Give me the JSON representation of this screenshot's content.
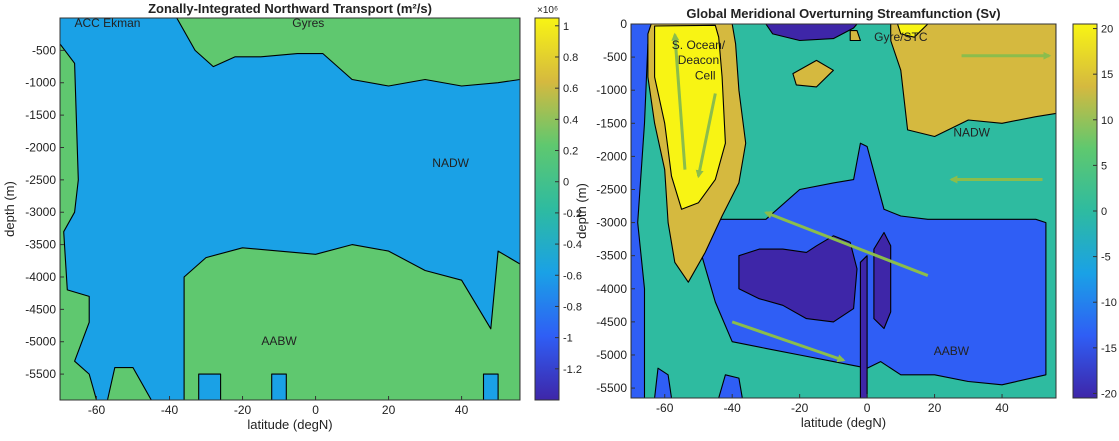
{
  "colors": {
    "levels": [
      "#3e26a8",
      "#2f5ef5",
      "#1aa1e6",
      "#2ebba0",
      "#5fc86f",
      "#d5b93f",
      "#f8f414"
    ]
  },
  "chart_data": [
    {
      "type": "heatmap",
      "title": "Zonally-Integrated Northward Transport (m²/s)",
      "xlabel": "latitude (degN)",
      "ylabel": "depth (m)",
      "xlim": [
        -70,
        56
      ],
      "ylim": [
        -5900,
        0
      ],
      "xticks": [
        "-60",
        "-40",
        "-20",
        "0",
        "20",
        "40"
      ],
      "xtick_values": [
        -60,
        -40,
        -20,
        0,
        20,
        40
      ],
      "yticks": [
        "-500",
        "-1000",
        "-1500",
        "-2000",
        "-2500",
        "-3000",
        "-3500",
        "-4000",
        "-4500",
        "-5000",
        "-5500"
      ],
      "ytick_values": [
        -500,
        -1000,
        -1500,
        -2000,
        -2500,
        -3000,
        -3500,
        -4000,
        -4500,
        -5000,
        -5500
      ],
      "colorbar": {
        "exponent": "×10⁶",
        "ticks": [
          "1",
          "0.8",
          "0.6",
          "0.4",
          "0.2",
          "0",
          "-0.2",
          "-0.4",
          "-0.6",
          "-0.8",
          "-1",
          "-1.2"
        ],
        "tick_values": [
          1,
          0.8,
          0.6,
          0.4,
          0.2,
          0,
          -0.2,
          -0.4,
          -0.6,
          -0.8,
          -1,
          -1.2
        ],
        "range": [
          -1.4,
          1.05
        ]
      },
      "annotations": [
        {
          "text": "ACC Ekman",
          "x": -57,
          "y": -90
        },
        {
          "text": "Gyres",
          "x": -2,
          "y": -90
        },
        {
          "text": "NADW",
          "x": 37,
          "y": -2250
        },
        {
          "text": "AABW",
          "x": -10,
          "y": -5000
        }
      ],
      "regions": [
        {
          "level": 4,
          "points": [
            [
              -70,
              0
            ],
            [
              -38,
              0
            ],
            [
              -33,
              -500
            ],
            [
              -28,
              -750
            ],
            [
              -22,
              -600
            ],
            [
              -15,
              -600
            ],
            [
              -5,
              -550
            ],
            [
              2,
              -550
            ],
            [
              10,
              -950
            ],
            [
              20,
              -1050
            ],
            [
              30,
              -950
            ],
            [
              40,
              -1050
            ],
            [
              50,
              -1000
            ],
            [
              56,
              -950
            ],
            [
              56,
              0
            ]
          ]
        },
        {
          "level": 4,
          "points": [
            [
              -70,
              -5900
            ],
            [
              -70,
              -400
            ],
            [
              -66,
              -700
            ],
            [
              -65,
              -2500
            ],
            [
              -66,
              -3000
            ],
            [
              -69,
              -3300
            ],
            [
              -68,
              -4200
            ],
            [
              -62,
              -4300
            ],
            [
              -62,
              -4700
            ],
            [
              -66,
              -5300
            ],
            [
              -62,
              -5500
            ],
            [
              -60,
              -5900
            ]
          ]
        },
        {
          "level": 4,
          "points": [
            [
              -36,
              -5900
            ],
            [
              -36,
              -4000
            ],
            [
              -30,
              -3700
            ],
            [
              -20,
              -3550
            ],
            [
              -10,
              -3600
            ],
            [
              0,
              -3650
            ],
            [
              10,
              -3500
            ],
            [
              20,
              -3600
            ],
            [
              30,
              -3900
            ],
            [
              40,
              -4050
            ],
            [
              48,
              -4800
            ],
            [
              50,
              -3600
            ],
            [
              56,
              -3800
            ],
            [
              56,
              -5900
            ],
            [
              50,
              -5900
            ],
            [
              50,
              -5500
            ],
            [
              46,
              -5500
            ],
            [
              46,
              -5900
            ],
            [
              -8,
              -5900
            ],
            [
              -8,
              -5500
            ],
            [
              -12,
              -5500
            ],
            [
              -12,
              -5900
            ],
            [
              -26,
              -5900
            ],
            [
              -26,
              -5500
            ],
            [
              -32,
              -5500
            ],
            [
              -32,
              -5900
            ]
          ]
        },
        {
          "level": 4,
          "points": [
            [
              -57,
              -5900
            ],
            [
              -55,
              -5400
            ],
            [
              -50,
              -5400
            ],
            [
              -45,
              -5900
            ]
          ]
        }
      ]
    },
    {
      "type": "heatmap",
      "title": "Global Meridional Overturning Streamfunction (Sv)",
      "xlabel": "latitude (degN)",
      "ylabel": "depth (m)",
      "xlim": [
        -70,
        56
      ],
      "ylim": [
        -5650,
        0
      ],
      "xticks": [
        "-60",
        "-40",
        "-20",
        "0",
        "20",
        "40"
      ],
      "xtick_values": [
        -60,
        -40,
        -20,
        0,
        20,
        40
      ],
      "yticks": [
        "0",
        "-500",
        "-1000",
        "-1500",
        "-2000",
        "-2500",
        "-3000",
        "-3500",
        "-4000",
        "-4500",
        "-5000",
        "-5500"
      ],
      "ytick_values": [
        0,
        -500,
        -1000,
        -1500,
        -2000,
        -2500,
        -3000,
        -3500,
        -4000,
        -4500,
        -5000,
        -5500
      ],
      "colorbar": {
        "exponent": "",
        "ticks": [
          "20",
          "15",
          "10",
          "5",
          "0",
          "-5",
          "-10",
          "-15",
          "-20"
        ],
        "tick_values": [
          20,
          15,
          10,
          5,
          0,
          -5,
          -10,
          -15,
          -20
        ],
        "range": [
          -20.5,
          20.5
        ]
      },
      "annotations": [
        {
          "text": "S. Ocean/",
          "x": -50,
          "y": -330
        },
        {
          "text": "Deacon",
          "x": -50,
          "y": -560
        },
        {
          "text": "Cell",
          "x": -48,
          "y": -790
        },
        {
          "text": "Gyre/STC",
          "x": 10,
          "y": -210
        },
        {
          "text": "NADW",
          "x": 31,
          "y": -1650
        },
        {
          "text": "AABW",
          "x": 25,
          "y": -4950
        }
      ],
      "arrows": [
        {
          "from": [
            -54,
            -2200
          ],
          "to": [
            -57,
            -160
          ]
        },
        {
          "from": [
            -45,
            -1050
          ],
          "to": [
            -50,
            -2300
          ]
        },
        {
          "from": [
            52,
            -2350
          ],
          "to": [
            25,
            -2350
          ]
        },
        {
          "from": [
            18,
            -3800
          ],
          "to": [
            -30,
            -2850
          ]
        },
        {
          "from": [
            -40,
            -4500
          ],
          "to": [
            -7,
            -5080
          ]
        },
        {
          "from": [
            28,
            -480
          ],
          "to": [
            54,
            -480
          ]
        }
      ],
      "regions": [
        {
          "level": 1,
          "points": [
            [
              -70,
              0
            ],
            [
              -70,
              -5650
            ],
            [
              -66,
              -5650
            ],
            [
              -66,
              -4000
            ],
            [
              -68,
              -3000
            ],
            [
              -66,
              -1500
            ],
            [
              -65,
              -300
            ],
            [
              -62,
              -100
            ],
            [
              -60,
              0
            ]
          ]
        },
        {
          "level": 1,
          "points": [
            [
              -45,
              -2950
            ],
            [
              -30,
              -2950
            ],
            [
              -20,
              -2500
            ],
            [
              -10,
              -2400
            ],
            [
              -4,
              -2350
            ],
            [
              -2,
              -1800
            ],
            [
              0,
              -1850
            ],
            [
              5,
              -2800
            ],
            [
              10,
              -2900
            ],
            [
              18,
              -2950
            ],
            [
              30,
              -2950
            ],
            [
              40,
              -2950
            ],
            [
              50,
              -2950
            ],
            [
              53,
              -3000
            ],
            [
              53,
              -5300
            ],
            [
              40,
              -5450
            ],
            [
              30,
              -5400
            ],
            [
              20,
              -5300
            ],
            [
              10,
              -5300
            ],
            [
              4,
              -5100
            ],
            [
              0,
              -5200
            ],
            [
              -10,
              -5100
            ],
            [
              -20,
              -5000
            ],
            [
              -30,
              -4900
            ],
            [
              -40,
              -4800
            ],
            [
              -45,
              -4200
            ],
            [
              -49,
              -3500
            ]
          ]
        },
        {
          "level": 0,
          "points": [
            [
              -38,
              -3500
            ],
            [
              -32,
              -3400
            ],
            [
              -25,
              -3400
            ],
            [
              -18,
              -3450
            ],
            [
              -15,
              -3350
            ],
            [
              -10,
              -3200
            ],
            [
              -5,
              -3300
            ],
            [
              -3,
              -3700
            ],
            [
              -4,
              -4300
            ],
            [
              -10,
              -4500
            ],
            [
              -18,
              -4450
            ],
            [
              -25,
              -4250
            ],
            [
              -32,
              -4150
            ],
            [
              -38,
              -4000
            ]
          ]
        },
        {
          "level": 0,
          "points": [
            [
              2,
              -3400
            ],
            [
              5,
              -3150
            ],
            [
              7,
              -3350
            ],
            [
              7,
              -4350
            ],
            [
              5,
              -4600
            ],
            [
              2,
              -4450
            ]
          ]
        },
        {
          "level": 5,
          "points": [
            [
              -65,
              -150
            ],
            [
              -65,
              -800
            ],
            [
              -63,
              -1500
            ],
            [
              -60,
              -2200
            ],
            [
              -59,
              -3000
            ],
            [
              -57,
              -3600
            ],
            [
              -53,
              -3900
            ],
            [
              -48,
              -3450
            ],
            [
              -43,
              -2900
            ],
            [
              -38,
              -2400
            ],
            [
              -36,
              -1800
            ],
            [
              -38,
              -1000
            ],
            [
              -39,
              -300
            ],
            [
              -40,
              0
            ],
            [
              -64,
              0
            ]
          ]
        },
        {
          "level": 6,
          "points": [
            [
              -63,
              -30
            ],
            [
              -63,
              -800
            ],
            [
              -60,
              -1500
            ],
            [
              -58,
              -2300
            ],
            [
              -55,
              -2800
            ],
            [
              -50,
              -2700
            ],
            [
              -45,
              -2350
            ],
            [
              -42,
              -1800
            ],
            [
              -43,
              -800
            ],
            [
              -44,
              -200
            ],
            [
              -45,
              -20
            ]
          ]
        },
        {
          "level": 5,
          "points": [
            [
              7,
              0
            ],
            [
              7,
              -250
            ],
            [
              10,
              -700
            ],
            [
              12,
              -1600
            ],
            [
              20,
              -1700
            ],
            [
              30,
              -1450
            ],
            [
              40,
              -1500
            ],
            [
              50,
              -1400
            ],
            [
              56,
              -1350
            ],
            [
              56,
              0
            ]
          ]
        },
        {
          "level": 6,
          "points": [
            [
              9,
              0
            ],
            [
              10,
              -150
            ],
            [
              14,
              -200
            ],
            [
              18,
              0
            ]
          ]
        },
        {
          "level": 5,
          "points": [
            [
              -22,
              -750
            ],
            [
              -15,
              -550
            ],
            [
              -10,
              -700
            ],
            [
              -15,
              -950
            ],
            [
              -21,
              -920
            ]
          ]
        },
        {
          "level": 5,
          "points": [
            [
              -5,
              -100
            ],
            [
              -3,
              -100
            ],
            [
              -2,
              -250
            ],
            [
              -5,
              -250
            ]
          ]
        },
        {
          "level": 0,
          "points": [
            [
              -30,
              0
            ],
            [
              -28,
              -150
            ],
            [
              -20,
              -250
            ],
            [
              -10,
              -220
            ],
            [
              -4,
              -60
            ],
            [
              -3,
              0
            ]
          ]
        },
        {
          "level": 0,
          "points": [
            [
              -2,
              -3600
            ],
            [
              0,
              -3500
            ],
            [
              0,
              -5650
            ],
            [
              -2,
              -5650
            ]
          ]
        },
        {
          "level": 1,
          "points": [
            [
              -63,
              -5650
            ],
            [
              -62,
              -5200
            ],
            [
              -59,
              -5300
            ],
            [
              -58,
              -5650
            ]
          ]
        },
        {
          "level": 1,
          "points": [
            [
              -44,
              -5650
            ],
            [
              -42,
              -5300
            ],
            [
              -38,
              -5350
            ],
            [
              -37,
              -5650
            ]
          ]
        }
      ]
    }
  ]
}
